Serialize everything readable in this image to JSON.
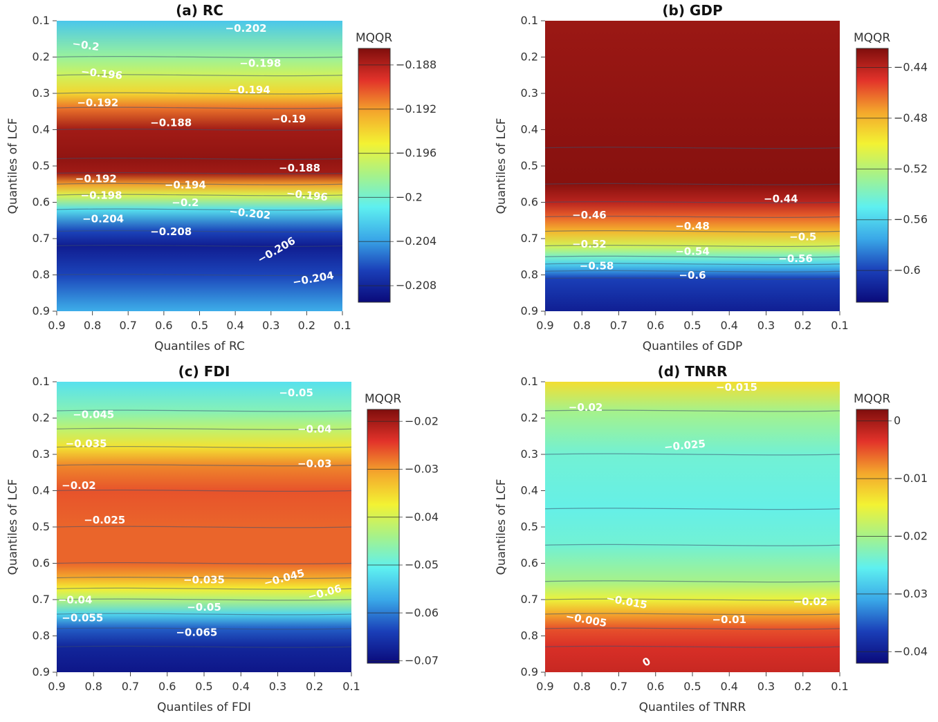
{
  "legend_title": "MQQR",
  "chart_data": [
    {
      "id": "a",
      "type": "heatmap",
      "title": "(a) RC",
      "xlabel": "Quantiles of RC",
      "ylabel": "Quantiles of LCF",
      "xticks": [
        "0.9",
        "0.8",
        "0.7",
        "0.6",
        "0.5",
        "0.4",
        "0.3",
        "0.2",
        "0.1"
      ],
      "yticks": [
        "0.1",
        "0.2",
        "0.3",
        "0.4",
        "0.5",
        "0.6",
        "0.7",
        "0.8",
        "0.9"
      ],
      "zmin": -0.2095,
      "zmax": -0.1865,
      "colorbar_ticks": [
        -0.188,
        -0.192,
        -0.196,
        -0.2,
        -0.204,
        -0.208
      ],
      "colorbar_labels": [
        "−0.188",
        "−0.192",
        "−0.196",
        "−0.2",
        "−0.204",
        "−0.208"
      ],
      "profile": [
        {
          "q": 0.1,
          "v": -0.2025
        },
        {
          "q": 0.2,
          "v": -0.1985
        },
        {
          "q": 0.25,
          "v": -0.1965
        },
        {
          "q": 0.3,
          "v": -0.194
        },
        {
          "q": 0.34,
          "v": -0.191
        },
        {
          "q": 0.4,
          "v": -0.1875
        },
        {
          "q": 0.48,
          "v": -0.187
        },
        {
          "q": 0.52,
          "v": -0.1875
        },
        {
          "q": 0.55,
          "v": -0.192
        },
        {
          "q": 0.58,
          "v": -0.196
        },
        {
          "q": 0.62,
          "v": -0.2015
        },
        {
          "q": 0.68,
          "v": -0.2065
        },
        {
          "q": 0.72,
          "v": -0.2085
        },
        {
          "q": 0.8,
          "v": -0.2065
        },
        {
          "q": 0.9,
          "v": -0.2035
        }
      ],
      "contour_labels": [
        {
          "text": "−0.202",
          "qx": 0.37,
          "qy": 0.13,
          "rot": 0
        },
        {
          "text": "−0.2",
          "qx": 0.82,
          "qy": 0.177,
          "rot": 8
        },
        {
          "text": "−0.198",
          "qx": 0.33,
          "qy": 0.227,
          "rot": 0
        },
        {
          "text": "−0.196",
          "qx": 0.775,
          "qy": 0.255,
          "rot": 6
        },
        {
          "text": "−0.194",
          "qx": 0.36,
          "qy": 0.3,
          "rot": 0
        },
        {
          "text": "−0.192",
          "qx": 0.785,
          "qy": 0.335,
          "rot": 0
        },
        {
          "text": "−0.19",
          "qx": 0.25,
          "qy": 0.38,
          "rot": 0
        },
        {
          "text": "−0.188",
          "qx": 0.58,
          "qy": 0.39,
          "rot": 0
        },
        {
          "text": "−0.188",
          "qx": 0.22,
          "qy": 0.515,
          "rot": 0
        },
        {
          "text": "−0.192",
          "qx": 0.79,
          "qy": 0.545,
          "rot": 0
        },
        {
          "text": "−0.194",
          "qx": 0.54,
          "qy": 0.562,
          "rot": 0
        },
        {
          "text": "−0.196",
          "qx": 0.2,
          "qy": 0.59,
          "rot": 6
        },
        {
          "text": "−0.198",
          "qx": 0.775,
          "qy": 0.59,
          "rot": 0
        },
        {
          "text": "−0.2",
          "qx": 0.54,
          "qy": 0.61,
          "rot": 0
        },
        {
          "text": "−0.202",
          "qx": 0.36,
          "qy": 0.64,
          "rot": 6
        },
        {
          "text": "−0.204",
          "qx": 0.77,
          "qy": 0.655,
          "rot": 0
        },
        {
          "text": "−0.208",
          "qx": 0.58,
          "qy": 0.69,
          "rot": 0
        },
        {
          "text": "−0.206",
          "qx": 0.28,
          "qy": 0.74,
          "rot": -30
        },
        {
          "text": "−0.204",
          "qx": 0.18,
          "qy": 0.82,
          "rot": -10
        }
      ]
    },
    {
      "id": "b",
      "type": "heatmap",
      "title": "(b) GDP",
      "xlabel": "Quantiles of GDP",
      "ylabel": "Quantiles of LCF",
      "xticks": [
        "0.9",
        "0.8",
        "0.7",
        "0.6",
        "0.5",
        "0.4",
        "0.3",
        "0.2",
        "0.1"
      ],
      "yticks": [
        "0.1",
        "0.2",
        "0.3",
        "0.4",
        "0.5",
        "0.6",
        "0.7",
        "0.8",
        "0.9"
      ],
      "zmin": -0.625,
      "zmax": -0.425,
      "colorbar_ticks": [
        -0.44,
        -0.48,
        -0.52,
        -0.56,
        -0.6
      ],
      "colorbar_labels": [
        "−0.44",
        "−0.48",
        "−0.52",
        "−0.56",
        "−0.6"
      ],
      "profile": [
        {
          "q": 0.1,
          "v": -0.432
        },
        {
          "q": 0.45,
          "v": -0.428
        },
        {
          "q": 0.55,
          "v": -0.427
        },
        {
          "q": 0.6,
          "v": -0.44
        },
        {
          "q": 0.64,
          "v": -0.46
        },
        {
          "q": 0.68,
          "v": -0.48
        },
        {
          "q": 0.72,
          "v": -0.51
        },
        {
          "q": 0.75,
          "v": -0.54
        },
        {
          "q": 0.77,
          "v": -0.56
        },
        {
          "q": 0.79,
          "v": -0.58
        },
        {
          "q": 0.81,
          "v": -0.6
        },
        {
          "q": 0.9,
          "v": -0.615
        }
      ],
      "contour_labels": [
        {
          "text": "−0.44",
          "qx": 0.26,
          "qy": 0.6,
          "rot": 0
        },
        {
          "text": "−0.46",
          "qx": 0.78,
          "qy": 0.645,
          "rot": 0
        },
        {
          "text": "−0.48",
          "qx": 0.5,
          "qy": 0.675,
          "rot": 0
        },
        {
          "text": "−0.5",
          "qx": 0.2,
          "qy": 0.705,
          "rot": 0
        },
        {
          "text": "−0.52",
          "qx": 0.78,
          "qy": 0.725,
          "rot": 0
        },
        {
          "text": "−0.54",
          "qx": 0.5,
          "qy": 0.745,
          "rot": 0
        },
        {
          "text": "−0.56",
          "qx": 0.22,
          "qy": 0.765,
          "rot": 0
        },
        {
          "text": "−0.58",
          "qx": 0.76,
          "qy": 0.785,
          "rot": 0
        },
        {
          "text": "−0.6",
          "qx": 0.5,
          "qy": 0.81,
          "rot": 0
        }
      ]
    },
    {
      "id": "c",
      "type": "heatmap",
      "title": "(c) FDI",
      "xlabel": "Quantiles of FDI",
      "ylabel": "Quantiles of LCF",
      "xticks": [
        "0.9",
        "0.8",
        "0.7",
        "0.6",
        "0.5",
        "0.4",
        "0.3",
        "0.2",
        "0.1"
      ],
      "yticks": [
        "0.1",
        "0.2",
        "0.3",
        "0.4",
        "0.5",
        "0.6",
        "0.7",
        "0.8",
        "0.9"
      ],
      "zmin": -0.0705,
      "zmax": -0.0175,
      "colorbar_ticks": [
        -0.02,
        -0.03,
        -0.04,
        -0.05,
        -0.06,
        -0.07
      ],
      "colorbar_labels": [
        "−0.02",
        "−0.03",
        "−0.04",
        "−0.05",
        "−0.06",
        "−0.07"
      ],
      "profile": [
        {
          "q": 0.1,
          "v": -0.052
        },
        {
          "q": 0.18,
          "v": -0.047
        },
        {
          "q": 0.23,
          "v": -0.042
        },
        {
          "q": 0.28,
          "v": -0.036
        },
        {
          "q": 0.33,
          "v": -0.029
        },
        {
          "q": 0.4,
          "v": -0.026
        },
        {
          "q": 0.5,
          "v": -0.027
        },
        {
          "q": 0.6,
          "v": -0.027
        },
        {
          "q": 0.64,
          "v": -0.031
        },
        {
          "q": 0.67,
          "v": -0.037
        },
        {
          "q": 0.7,
          "v": -0.043
        },
        {
          "q": 0.74,
          "v": -0.053
        },
        {
          "q": 0.78,
          "v": -0.062
        },
        {
          "q": 0.83,
          "v": -0.067
        },
        {
          "q": 0.9,
          "v": -0.069
        }
      ],
      "contour_labels": [
        {
          "text": "−0.05",
          "qx": 0.25,
          "qy": 0.14,
          "rot": 0
        },
        {
          "text": "−0.045",
          "qx": 0.8,
          "qy": 0.2,
          "rot": 0
        },
        {
          "text": "−0.04",
          "qx": 0.2,
          "qy": 0.24,
          "rot": 0
        },
        {
          "text": "−0.035",
          "qx": 0.82,
          "qy": 0.28,
          "rot": 0
        },
        {
          "text": "−0.03",
          "qx": 0.2,
          "qy": 0.335,
          "rot": 0
        },
        {
          "text": "−0.02",
          "qx": 0.84,
          "qy": 0.395,
          "rot": 0
        },
        {
          "text": "−0.025",
          "qx": 0.77,
          "qy": 0.49,
          "rot": 0
        },
        {
          "text": "−0.035",
          "qx": 0.5,
          "qy": 0.655,
          "rot": 0
        },
        {
          "text": "−0.045",
          "qx": 0.28,
          "qy": 0.65,
          "rot": -15
        },
        {
          "text": "−0.06",
          "qx": 0.17,
          "qy": 0.69,
          "rot": -15
        },
        {
          "text": "−0.04",
          "qx": 0.85,
          "qy": 0.71,
          "rot": 0
        },
        {
          "text": "−0.05",
          "qx": 0.5,
          "qy": 0.73,
          "rot": 0
        },
        {
          "text": "−0.055",
          "qx": 0.83,
          "qy": 0.76,
          "rot": 0
        },
        {
          "text": "−0.065",
          "qx": 0.52,
          "qy": 0.8,
          "rot": 0
        }
      ]
    },
    {
      "id": "d",
      "type": "heatmap",
      "title": "(d) TNRR",
      "xlabel": "Quantiles of TNRR",
      "ylabel": "Quantiles of LCF",
      "xticks": [
        "0.9",
        "0.8",
        "0.7",
        "0.6",
        "0.5",
        "0.4",
        "0.3",
        "0.2",
        "0.1"
      ],
      "yticks": [
        "0.1",
        "0.2",
        "0.3",
        "0.4",
        "0.5",
        "0.6",
        "0.7",
        "0.8",
        "0.9"
      ],
      "zmin": -0.042,
      "zmax": 0.002,
      "colorbar_ticks": [
        0,
        -0.01,
        -0.02,
        -0.03,
        -0.04
      ],
      "colorbar_labels": [
        "0",
        "−0.01",
        "−0.02",
        "−0.03",
        "−0.04"
      ],
      "profile": [
        {
          "q": 0.1,
          "v": -0.013
        },
        {
          "q": 0.18,
          "v": -0.02
        },
        {
          "q": 0.3,
          "v": -0.024
        },
        {
          "q": 0.45,
          "v": -0.025
        },
        {
          "q": 0.55,
          "v": -0.024
        },
        {
          "q": 0.65,
          "v": -0.02
        },
        {
          "q": 0.7,
          "v": -0.015
        },
        {
          "q": 0.74,
          "v": -0.009
        },
        {
          "q": 0.78,
          "v": -0.005
        },
        {
          "q": 0.83,
          "v": -0.003
        },
        {
          "q": 0.9,
          "v": -0.002
        }
      ],
      "contour_labels": [
        {
          "text": "−0.015",
          "qx": 0.38,
          "qy": 0.125,
          "rot": 0
        },
        {
          "text": "−0.02",
          "qx": 0.79,
          "qy": 0.18,
          "rot": 0
        },
        {
          "text": "−0.025",
          "qx": 0.52,
          "qy": 0.285,
          "rot": -5
        },
        {
          "text": "−0.015",
          "qx": 0.68,
          "qy": 0.715,
          "rot": 10
        },
        {
          "text": "−0.02",
          "qx": 0.18,
          "qy": 0.715,
          "rot": 0
        },
        {
          "text": "−0.005",
          "qx": 0.79,
          "qy": 0.765,
          "rot": 10
        },
        {
          "text": "−0.01",
          "qx": 0.4,
          "qy": 0.765,
          "rot": 0
        },
        {
          "text": "0",
          "qx": 0.62,
          "qy": 0.88,
          "rot": -30
        }
      ]
    }
  ]
}
